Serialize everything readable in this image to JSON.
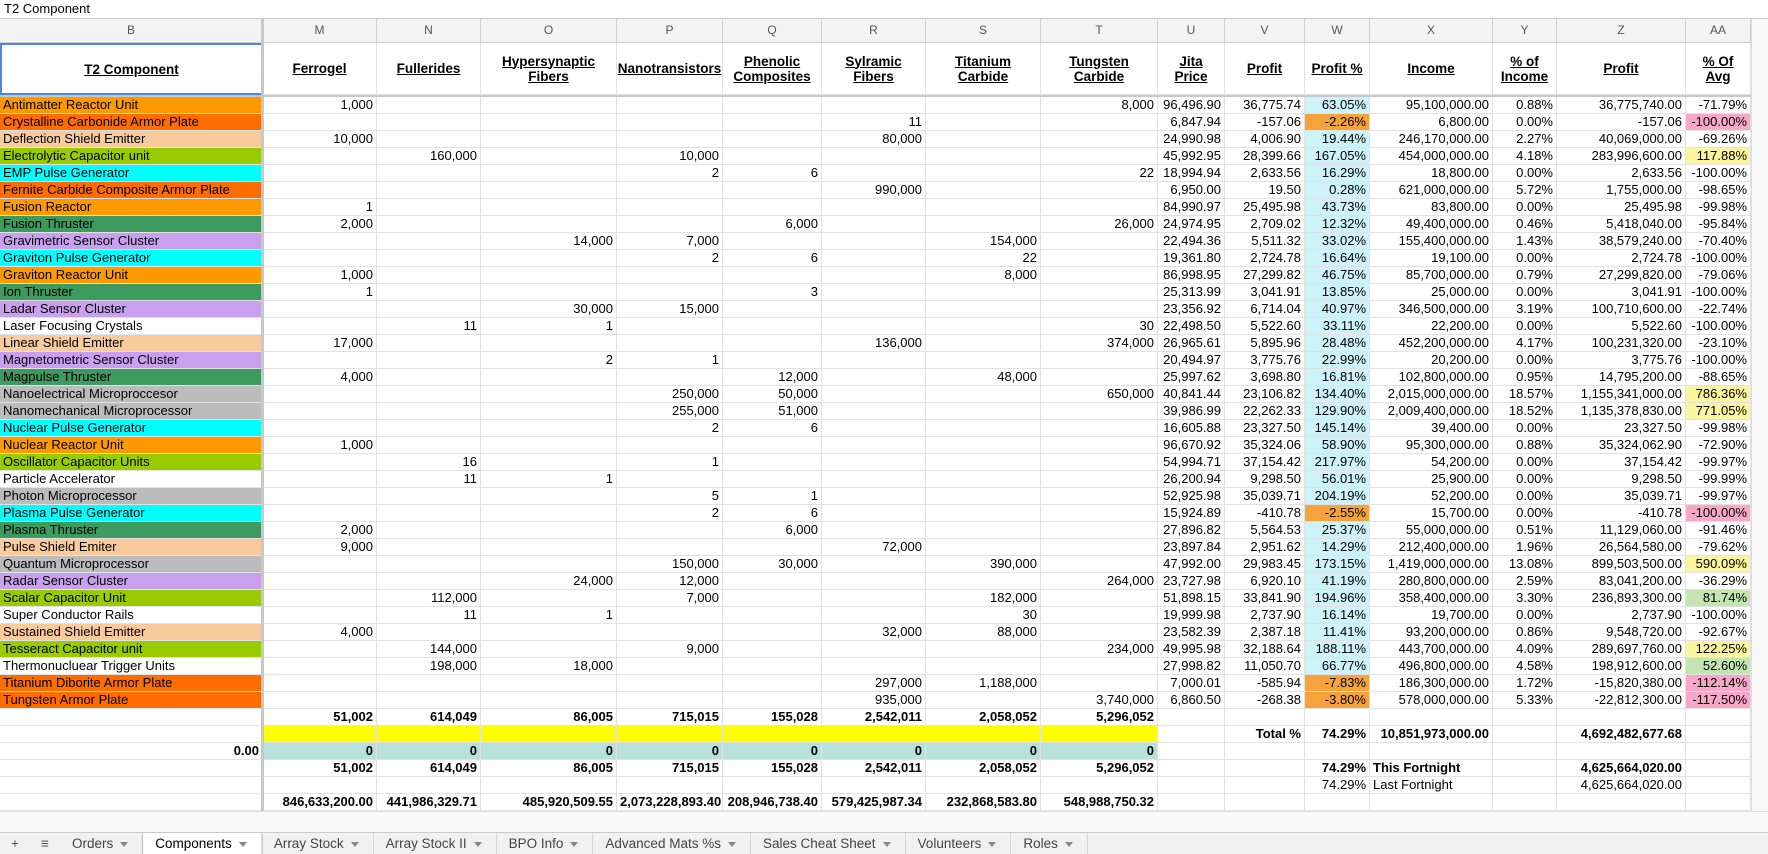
{
  "formula_bar": "T2 Component",
  "column_letters": [
    "B",
    "M",
    "N",
    "O",
    "P",
    "Q",
    "R",
    "S",
    "T",
    "U",
    "V",
    "W",
    "X",
    "Y",
    "Z",
    "AA"
  ],
  "headers": [
    "T2 Component",
    "Ferrogel",
    "Fullerides",
    "Hypersynaptic Fibers",
    "Nanotransistors",
    "Phenolic Composites",
    "Sylramic Fibers",
    "Titanium Carbide",
    "Tungsten Carbide",
    "Jita Price",
    "Profit",
    "Profit %",
    "Income",
    "% of Income",
    "Profit",
    "% Of Avg"
  ],
  "profit_pct_color": "#cdf2f9",
  "rows": [
    {
      "cells": [
        "Antimatter Reactor Unit",
        "1,000",
        null,
        null,
        null,
        null,
        null,
        null,
        "8,000",
        "96,496.90",
        "36,775.74",
        "63.05%",
        "95,100,000.00",
        "0.88%",
        "36,775,740.00",
        "-71.79%"
      ],
      "color": "#ff9900"
    },
    {
      "cells": [
        "Crystalline Carbonide Armor Plate",
        null,
        null,
        null,
        null,
        null,
        "11",
        null,
        null,
        "6,847.94",
        "-157.06",
        "-2.26%",
        "6,800.00",
        "0.00%",
        "-157.06",
        "-100.00%"
      ],
      "color": "#ff6d01",
      "w_color": "#f6a33c",
      "aa_color": "#f7a8c8"
    },
    {
      "cells": [
        "Deflection Shield Emitter",
        "10,000",
        null,
        null,
        null,
        null,
        "80,000",
        null,
        null,
        "24,990.98",
        "4,006.90",
        "19.44%",
        "246,170,000.00",
        "2.27%",
        "40,069,000.00",
        "-69.26%"
      ],
      "color": "#f9cb9c"
    },
    {
      "cells": [
        "Electrolytic Capacitor unit",
        null,
        "160,000",
        null,
        "10,000",
        null,
        null,
        null,
        null,
        "45,992.95",
        "28,399.66",
        "167.05%",
        "454,000,000.00",
        "4.18%",
        "283,996,600.00",
        "117.88%"
      ],
      "color": "#99cc00",
      "aa_color": "#fbf5a0"
    },
    {
      "cells": [
        "EMP Pulse Generator",
        null,
        null,
        null,
        "2",
        "6",
        null,
        null,
        "22",
        "18,994.94",
        "2,633.56",
        "16.29%",
        "18,800.00",
        "0.00%",
        "2,633.56",
        "-100.00%"
      ],
      "color": "#00ffff"
    },
    {
      "cells": [
        "Fernite Carbide Composite Armor Plate",
        null,
        null,
        null,
        null,
        null,
        "990,000",
        null,
        null,
        "6,950.00",
        "19.50",
        "0.28%",
        "621,000,000.00",
        "5.72%",
        "1,755,000.00",
        "-98.65%"
      ],
      "color": "#ff6d01"
    },
    {
      "cells": [
        "Fusion Reactor",
        "1",
        null,
        null,
        null,
        null,
        null,
        null,
        null,
        "84,990.97",
        "25,495.98",
        "43.73%",
        "83,800.00",
        "0.00%",
        "25,495.98",
        "-99.98%"
      ],
      "color": "#ff9900"
    },
    {
      "cells": [
        "Fusion Thruster",
        "2,000",
        null,
        null,
        null,
        "6,000",
        null,
        null,
        "26,000",
        "24,974.95",
        "2,709.02",
        "12.32%",
        "49,400,000.00",
        "0.46%",
        "5,418,040.00",
        "-95.84%"
      ],
      "color": "#3d9b5f"
    },
    {
      "cells": [
        "Gravimetric Sensor Cluster",
        null,
        null,
        "14,000",
        "7,000",
        null,
        null,
        "154,000",
        null,
        "22,494.36",
        "5,511.32",
        "33.02%",
        "155,400,000.00",
        "1.43%",
        "38,579,240.00",
        "-70.40%"
      ],
      "color": "#c9a0f0"
    },
    {
      "cells": [
        "Graviton Pulse Generator",
        null,
        null,
        null,
        "2",
        "6",
        null,
        "22",
        null,
        "19,361.80",
        "2,724.78",
        "16.64%",
        "19,100.00",
        "0.00%",
        "2,724.78",
        "-100.00%"
      ],
      "color": "#00ffff"
    },
    {
      "cells": [
        "Graviton Reactor Unit",
        "1,000",
        null,
        null,
        null,
        null,
        null,
        "8,000",
        null,
        "86,998.95",
        "27,299.82",
        "46.75%",
        "85,700,000.00",
        "0.79%",
        "27,299,820.00",
        "-79.06%"
      ],
      "color": "#ff9900"
    },
    {
      "cells": [
        "Ion Thruster",
        "1",
        null,
        null,
        null,
        "3",
        null,
        null,
        null,
        "25,313.99",
        "3,041.91",
        "13.85%",
        "25,000.00",
        "0.00%",
        "3,041.91",
        "-100.00%"
      ],
      "color": "#3d9b5f"
    },
    {
      "cells": [
        "Ladar Sensor Cluster",
        null,
        null,
        "30,000",
        "15,000",
        null,
        null,
        null,
        null,
        "23,356.92",
        "6,714.04",
        "40.97%",
        "346,500,000.00",
        "3.19%",
        "100,710,600.00",
        "-22.74%"
      ],
      "color": "#c9a0f0"
    },
    {
      "cells": [
        "Laser Focusing Crystals",
        null,
        "11",
        "1",
        null,
        null,
        null,
        null,
        "30",
        "22,498.50",
        "5,522.60",
        "33.11%",
        "22,200.00",
        "0.00%",
        "5,522.60",
        "-100.00%"
      ],
      "color": "#ffffff"
    },
    {
      "cells": [
        "Linear Shield Emitter",
        "17,000",
        null,
        null,
        null,
        null,
        "136,000",
        null,
        "374,000",
        "26,965.61",
        "5,895.96",
        "28.48%",
        "452,200,000.00",
        "4.17%",
        "100,231,320.00",
        "-23.10%"
      ],
      "color": "#f9cb9c"
    },
    {
      "cells": [
        "Magnetometric Sensor Cluster",
        null,
        null,
        "2",
        "1",
        null,
        null,
        null,
        null,
        "20,494.97",
        "3,775.76",
        "22.99%",
        "20,200.00",
        "0.00%",
        "3,775.76",
        "-100.00%"
      ],
      "color": "#c9a0f0"
    },
    {
      "cells": [
        "Magpulse Thruster",
        "4,000",
        null,
        null,
        null,
        "12,000",
        null,
        "48,000",
        null,
        "25,997.62",
        "3,698.80",
        "16.81%",
        "102,800,000.00",
        "0.95%",
        "14,795,200.00",
        "-88.65%"
      ],
      "color": "#3d9b5f"
    },
    {
      "cells": [
        "Nanoelectrical Microproccesor",
        null,
        null,
        null,
        "250,000",
        "50,000",
        null,
        null,
        "650,000",
        "40,841.44",
        "23,106.82",
        "134.40%",
        "2,015,000,000.00",
        "18.57%",
        "1,155,341,000.00",
        "786.36%"
      ],
      "color": "#bcbcbc",
      "aa_color": "#fbf5a0"
    },
    {
      "cells": [
        "Nanomechanical Microprocessor",
        null,
        null,
        null,
        "255,000",
        "51,000",
        null,
        null,
        null,
        "39,986.99",
        "22,262.33",
        "129.90%",
        "2,009,400,000.00",
        "18.52%",
        "1,135,378,830.00",
        "771.05%"
      ],
      "color": "#bcbcbc",
      "aa_color": "#fbf5a0"
    },
    {
      "cells": [
        "Nuclear Pulse Generator",
        null,
        null,
        null,
        "2",
        "6",
        null,
        null,
        null,
        "16,605.88",
        "23,327.50",
        "145.14%",
        "39,400.00",
        "0.00%",
        "23,327.50",
        "-99.98%"
      ],
      "color": "#00ffff"
    },
    {
      "cells": [
        "Nuclear Reactor Unit",
        "1,000",
        null,
        null,
        null,
        null,
        null,
        null,
        null,
        "96,670.92",
        "35,324.06",
        "58.90%",
        "95,300,000.00",
        "0.88%",
        "35,324,062.90",
        "-72.90%"
      ],
      "color": "#ff9900"
    },
    {
      "cells": [
        "Oscillator Capacitor Units",
        null,
        "16",
        null,
        "1",
        null,
        null,
        null,
        null,
        "54,994.71",
        "37,154.42",
        "217.97%",
        "54,200.00",
        "0.00%",
        "37,154.42",
        "-99.97%"
      ],
      "color": "#99cc00"
    },
    {
      "cells": [
        "Particle Accelerator",
        null,
        "11",
        "1",
        null,
        null,
        null,
        null,
        null,
        "26,200.94",
        "9,298.50",
        "56.01%",
        "25,900.00",
        "0.00%",
        "9,298.50",
        "-99.99%"
      ],
      "color": "#ffffff"
    },
    {
      "cells": [
        "Photon Microprocessor",
        null,
        null,
        null,
        "5",
        "1",
        null,
        null,
        null,
        "52,925.98",
        "35,039.71",
        "204.19%",
        "52,200.00",
        "0.00%",
        "35,039.71",
        "-99.97%"
      ],
      "color": "#bcbcbc"
    },
    {
      "cells": [
        "Plasma Pulse Generator",
        null,
        null,
        null,
        "2",
        "6",
        null,
        null,
        null,
        "15,924.89",
        "-410.78",
        "-2.55%",
        "15,700.00",
        "0.00%",
        "-410.78",
        "-100.00%"
      ],
      "color": "#00ffff",
      "w_color": "#f6a33c",
      "aa_color": "#f7a8c8"
    },
    {
      "cells": [
        "Plasma Thruster",
        "2,000",
        null,
        null,
        null,
        "6,000",
        null,
        null,
        null,
        "27,896.82",
        "5,564.53",
        "25.37%",
        "55,000,000.00",
        "0.51%",
        "11,129,060.00",
        "-91.46%"
      ],
      "color": "#3d9b5f"
    },
    {
      "cells": [
        "Pulse Shield Emiter",
        "9,000",
        null,
        null,
        null,
        null,
        "72,000",
        null,
        null,
        "23,897.84",
        "2,951.62",
        "14.29%",
        "212,400,000.00",
        "1.96%",
        "26,564,580.00",
        "-79.62%"
      ],
      "color": "#f9cb9c"
    },
    {
      "cells": [
        "Quantum Microprocessor",
        null,
        null,
        null,
        "150,000",
        "30,000",
        null,
        "390,000",
        null,
        "47,992.00",
        "29,983.45",
        "173.15%",
        "1,419,000,000.00",
        "13.08%",
        "899,503,500.00",
        "590.09%"
      ],
      "color": "#bcbcbc",
      "aa_color": "#fbf5a0"
    },
    {
      "cells": [
        "Radar Sensor Cluster",
        null,
        null,
        "24,000",
        "12,000",
        null,
        null,
        null,
        "264,000",
        "23,727.98",
        "6,920.10",
        "41.19%",
        "280,800,000.00",
        "2.59%",
        "83,041,200.00",
        "-36.29%"
      ],
      "color": "#c9a0f0"
    },
    {
      "cells": [
        "Scalar Capacitor Unit",
        null,
        "112,000",
        null,
        "7,000",
        null,
        null,
        "182,000",
        null,
        "51,898.15",
        "33,841.90",
        "194.96%",
        "358,400,000.00",
        "3.30%",
        "236,893,300.00",
        "81.74%"
      ],
      "color": "#99cc00",
      "aa_color": "#c3e6b1"
    },
    {
      "cells": [
        "Super Conductor Rails",
        null,
        "11",
        "1",
        null,
        null,
        null,
        "30",
        null,
        "19,999.98",
        "2,737.90",
        "16.14%",
        "19,700.00",
        "0.00%",
        "2,737.90",
        "-100.00%"
      ],
      "color": "#ffffff"
    },
    {
      "cells": [
        "Sustained Shield Emitter",
        "4,000",
        null,
        null,
        null,
        null,
        "32,000",
        "88,000",
        null,
        "23,582.39",
        "2,387.18",
        "11.41%",
        "93,200,000.00",
        "0.86%",
        "9,548,720.00",
        "-92.67%"
      ],
      "color": "#f9cb9c"
    },
    {
      "cells": [
        "Tesseract Capacitor unit",
        null,
        "144,000",
        null,
        "9,000",
        null,
        null,
        null,
        "234,000",
        "49,995.98",
        "32,188.64",
        "188.11%",
        "443,700,000.00",
        "4.09%",
        "289,697,760.00",
        "122.25%"
      ],
      "color": "#99cc00",
      "aa_color": "#fbf5a0"
    },
    {
      "cells": [
        "Thermonucluear Trigger Units",
        null,
        "198,000",
        "18,000",
        null,
        null,
        null,
        null,
        null,
        "27,998.82",
        "11,050.70",
        "66.77%",
        "496,800,000.00",
        "4.58%",
        "198,912,600.00",
        "52.60%"
      ],
      "color": "#ffffff",
      "aa_color": "#c3e6b1"
    },
    {
      "cells": [
        "Titanium Diborite Armor Plate",
        null,
        null,
        null,
        null,
        null,
        "297,000",
        "1,188,000",
        null,
        "7,000.01",
        "-585.94",
        "-7.83%",
        "186,300,000.00",
        "1.72%",
        "-15,820,380.00",
        "-112.14%"
      ],
      "color": "#ff6d01",
      "w_color": "#f6a33c",
      "aa_color": "#f7a8c8"
    },
    {
      "cells": [
        "Tungsten Armor Plate",
        null,
        null,
        null,
        null,
        null,
        "935,000",
        null,
        "3,740,000",
        "6,860.50",
        "-268.38",
        "-3.80%",
        "578,000,000.00",
        "5.33%",
        "-22,812,300.00",
        "-117.50%"
      ],
      "color": "#ff6d01",
      "w_color": "#f6a33c",
      "aa_color": "#f7a8c8"
    }
  ],
  "footer_rows": [
    {
      "cells": [
        null,
        "51,002",
        "614,049",
        "86,005",
        "715,015",
        "155,028",
        "2,542,011",
        "2,058,052",
        "5,296,052",
        null,
        null,
        null,
        null,
        null,
        null,
        null
      ],
      "bold": true
    },
    {
      "cells": [
        null,
        null,
        null,
        null,
        null,
        null,
        null,
        null,
        null,
        null,
        "Total %",
        "74.29%",
        "10,851,973,000.00",
        null,
        "4,692,482,677.68",
        null
      ],
      "bold": true,
      "band_color": "#ffff00"
    },
    {
      "cells": [
        "0.00",
        "0",
        "0",
        "0",
        "0",
        "0",
        "0",
        "0",
        "0",
        null,
        null,
        null,
        null,
        null,
        null,
        null
      ],
      "bold": true,
      "band_color": "#b7e1da"
    },
    {
      "cells": [
        null,
        "51,002",
        "614,049",
        "86,005",
        "715,015",
        "155,028",
        "2,542,011",
        "2,058,052",
        "5,296,052",
        null,
        null,
        "74.29%",
        "This Fortnight",
        null,
        "4,625,664,020.00",
        null
      ],
      "bold": true
    },
    {
      "cells": [
        null,
        null,
        null,
        null,
        null,
        null,
        null,
        null,
        null,
        null,
        null,
        "74.29%",
        "Last Fortnight",
        null,
        "4,625,664,020.00",
        null
      ],
      "bold": false
    },
    {
      "cells": [
        null,
        "846,633,200.00",
        "441,986,329.71",
        "485,920,509.55",
        "2,073,228,893.40",
        "208,946,738.40",
        "579,425,987.34",
        "232,868,583.80",
        "548,988,750.32",
        null,
        null,
        null,
        null,
        null,
        null,
        null
      ],
      "bold": true
    }
  ],
  "tabs": [
    "Orders",
    "Components",
    "Array Stock",
    "Array Stock II",
    "BPO Info",
    "Advanced Mats %s",
    "Sales Cheat Sheet",
    "Volunteers",
    "Roles"
  ],
  "active_tab": 1
}
